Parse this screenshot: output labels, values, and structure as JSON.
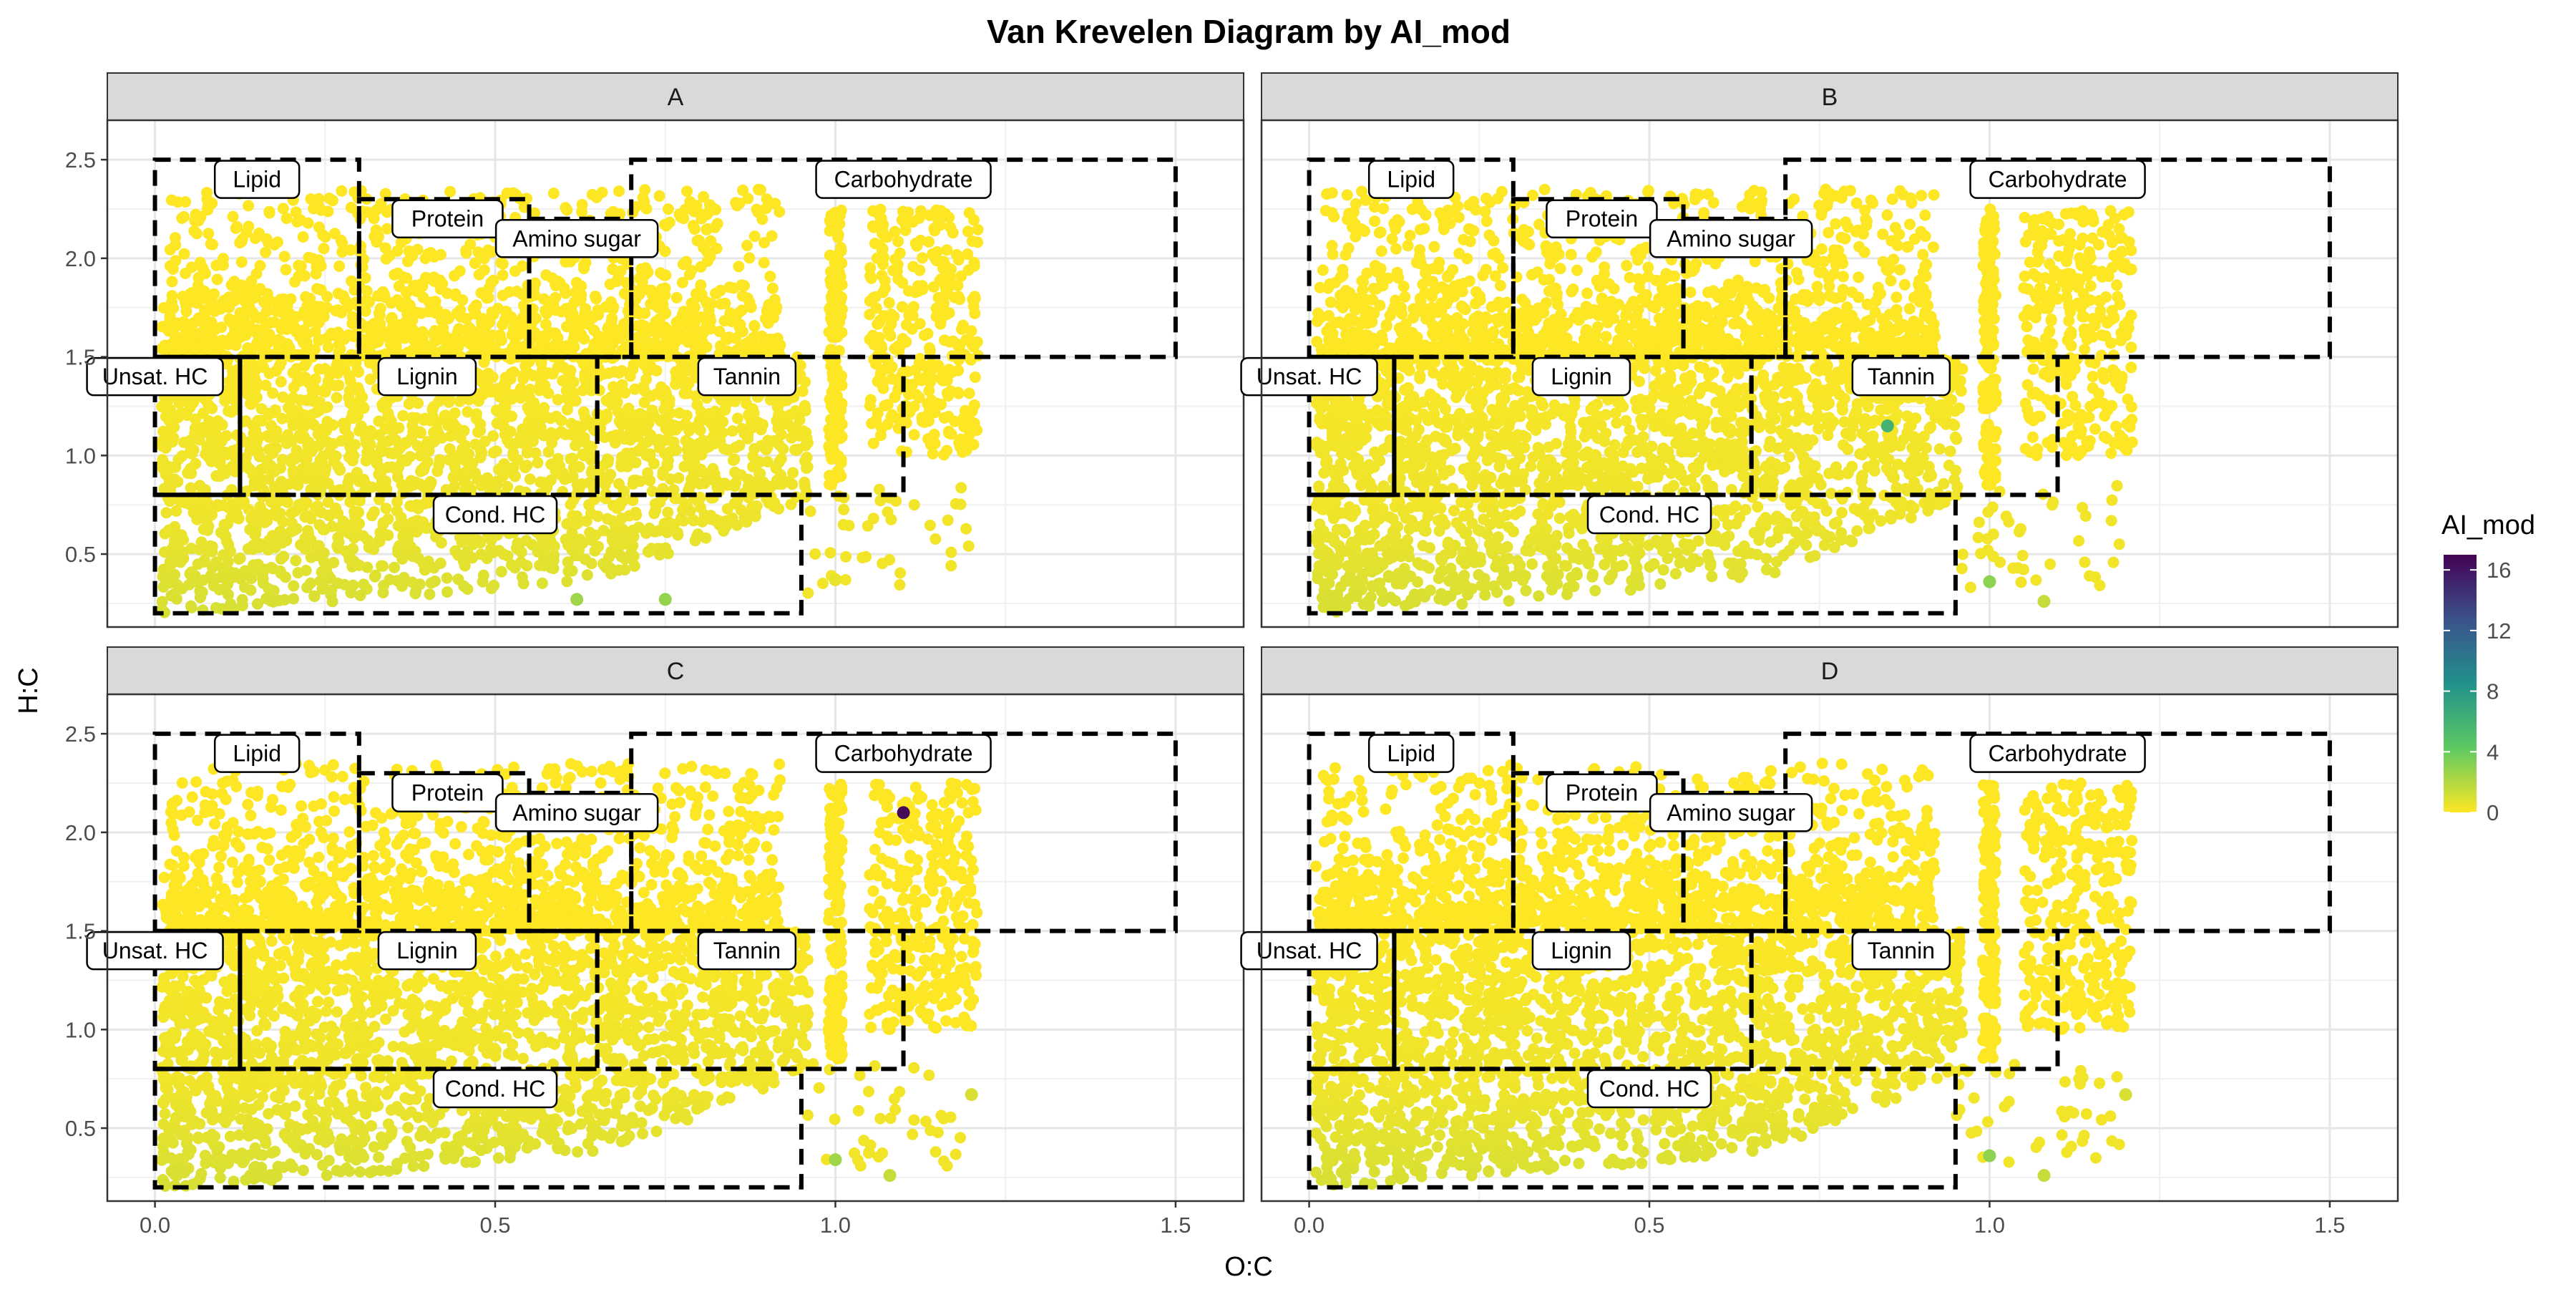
{
  "chart_data": {
    "type": "scatter",
    "title": "Van Krevelen Diagram by AI_mod",
    "xlabel": "O:C",
    "ylabel": "H:C",
    "xlim": [
      -0.07,
      1.6
    ],
    "ylim": [
      0.13,
      2.7
    ],
    "x_ticks": [
      0.0,
      0.5,
      1.0,
      1.5
    ],
    "x_tick_labels": [
      "0.0",
      "0.5",
      "1.0",
      "1.5"
    ],
    "y_ticks": [
      0.5,
      1.0,
      1.5,
      2.0,
      2.5
    ],
    "y_tick_labels": [
      "0.5",
      "1.0",
      "1.5",
      "2.0",
      "2.5"
    ],
    "grid": true,
    "facets": [
      "A",
      "B",
      "C",
      "D"
    ],
    "legend": {
      "title": "AI_mod",
      "position": "right",
      "type": "colorbar",
      "range": [
        0,
        17
      ],
      "ticks": [
        0,
        4,
        8,
        12,
        16
      ],
      "tick_labels": [
        "0",
        "4",
        "8",
        "12",
        "16"
      ],
      "colormap": "viridis (reversed)",
      "colors": [
        "#fde725",
        "#5ec962",
        "#21918c",
        "#3b528b",
        "#440154"
      ]
    },
    "compound_classes": [
      {
        "name": "Lipid",
        "oc": [
          0.0,
          0.3
        ],
        "hc": [
          1.5,
          2.5
        ],
        "label_at": [
          0.15,
          2.4
        ]
      },
      {
        "name": "Protein",
        "oc": [
          0.3,
          0.55
        ],
        "hc": [
          1.5,
          2.3
        ],
        "label_at": [
          0.43,
          2.2
        ]
      },
      {
        "name": "Amino sugar",
        "oc": [
          0.55,
          0.7
        ],
        "hc": [
          1.5,
          2.2
        ],
        "label_at": [
          0.62,
          2.1
        ]
      },
      {
        "name": "Carbohydrate",
        "oc": [
          0.7,
          1.5
        ],
        "hc": [
          1.5,
          2.5
        ],
        "label_at": [
          1.1,
          2.4
        ]
      },
      {
        "name": "Unsat. HC",
        "oc": [
          0.0,
          0.125
        ],
        "hc": [
          0.8,
          1.5
        ],
        "label_at": [
          0.0,
          1.4
        ]
      },
      {
        "name": "Lignin",
        "oc": [
          0.125,
          0.65
        ],
        "hc": [
          0.8,
          1.5
        ],
        "label_at": [
          0.4,
          1.4
        ]
      },
      {
        "name": "Tannin",
        "oc": [
          0.65,
          1.1
        ],
        "hc": [
          0.8,
          1.5
        ],
        "label_at": [
          0.87,
          1.4
        ]
      },
      {
        "name": "Cond. HC",
        "oc": [
          0.0,
          0.95
        ],
        "hc": [
          0.2,
          0.8
        ],
        "label_at": [
          0.5,
          0.7
        ]
      }
    ],
    "series": [
      {
        "facet": "A",
        "point_clusters": [
          {
            "oc_range": [
              0.02,
              0.6
            ],
            "hc_range": [
              0.22,
              0.8
            ],
            "ai_mod": 0.7,
            "density": "high"
          },
          {
            "oc_range": [
              0.02,
              0.95
            ],
            "hc_range": [
              0.8,
              1.5
            ],
            "ai_mod": 0.3,
            "density": "high"
          },
          {
            "oc_range": [
              0.05,
              0.9
            ],
            "hc_range": [
              1.5,
              2.3
            ],
            "ai_mod": 0.0,
            "density": "medium"
          },
          {
            "oc_range": [
              1.0,
              1.2
            ],
            "hc_range": [
              0.8,
              2.3
            ],
            "ai_mod": 0.0,
            "density": "medium"
          }
        ],
        "notable_points": [
          {
            "x": 0.62,
            "y": 0.27,
            "ai_mod": 2.5
          },
          {
            "x": 0.75,
            "y": 0.27,
            "ai_mod": 2.8
          },
          {
            "x": 1.0,
            "y": 0.37,
            "ai_mod": 0.5
          }
        ]
      },
      {
        "facet": "B",
        "point_clusters": [
          {
            "oc_range": [
              0.02,
              0.6
            ],
            "hc_range": [
              0.22,
              0.8
            ],
            "ai_mod": 0.7,
            "density": "high"
          },
          {
            "oc_range": [
              0.02,
              0.95
            ],
            "hc_range": [
              0.8,
              1.5
            ],
            "ai_mod": 0.3,
            "density": "high"
          },
          {
            "oc_range": [
              0.05,
              0.9
            ],
            "hc_range": [
              1.5,
              2.3
            ],
            "ai_mod": 0.0,
            "density": "medium"
          },
          {
            "oc_range": [
              1.0,
              1.2
            ],
            "hc_range": [
              0.8,
              2.3
            ],
            "ai_mod": 0.0,
            "density": "medium"
          }
        ],
        "notable_points": [
          {
            "x": 0.85,
            "y": 1.15,
            "ai_mod": 6.0
          },
          {
            "x": 1.0,
            "y": 0.36,
            "ai_mod": 3.0
          },
          {
            "x": 1.08,
            "y": 0.26,
            "ai_mod": 1.5
          }
        ]
      },
      {
        "facet": "C",
        "point_clusters": [
          {
            "oc_range": [
              0.02,
              0.6
            ],
            "hc_range": [
              0.22,
              0.8
            ],
            "ai_mod": 0.7,
            "density": "high"
          },
          {
            "oc_range": [
              0.02,
              0.95
            ],
            "hc_range": [
              0.8,
              1.5
            ],
            "ai_mod": 0.3,
            "density": "high"
          },
          {
            "oc_range": [
              0.05,
              0.9
            ],
            "hc_range": [
              1.5,
              2.3
            ],
            "ai_mod": 0.0,
            "density": "medium"
          },
          {
            "oc_range": [
              1.0,
              1.2
            ],
            "hc_range": [
              0.8,
              2.3
            ],
            "ai_mod": 0.0,
            "density": "medium"
          }
        ],
        "notable_points": [
          {
            "x": 1.1,
            "y": 2.1,
            "ai_mod": 16.5
          },
          {
            "x": 1.0,
            "y": 0.34,
            "ai_mod": 2.5
          },
          {
            "x": 1.08,
            "y": 0.26,
            "ai_mod": 1.5
          },
          {
            "x": 1.2,
            "y": 0.67,
            "ai_mod": 1.0
          }
        ]
      },
      {
        "facet": "D",
        "point_clusters": [
          {
            "oc_range": [
              0.02,
              0.6
            ],
            "hc_range": [
              0.22,
              0.8
            ],
            "ai_mod": 0.7,
            "density": "high"
          },
          {
            "oc_range": [
              0.02,
              0.95
            ],
            "hc_range": [
              0.8,
              1.5
            ],
            "ai_mod": 0.3,
            "density": "high"
          },
          {
            "oc_range": [
              0.05,
              0.9
            ],
            "hc_range": [
              1.5,
              2.3
            ],
            "ai_mod": 0.0,
            "density": "medium"
          },
          {
            "oc_range": [
              1.0,
              1.2
            ],
            "hc_range": [
              0.8,
              2.3
            ],
            "ai_mod": 0.0,
            "density": "medium"
          }
        ],
        "notable_points": [
          {
            "x": 1.0,
            "y": 0.36,
            "ai_mod": 3.0
          },
          {
            "x": 1.08,
            "y": 0.26,
            "ai_mod": 1.5
          },
          {
            "x": 1.2,
            "y": 0.67,
            "ai_mod": 1.0
          }
        ]
      }
    ]
  }
}
